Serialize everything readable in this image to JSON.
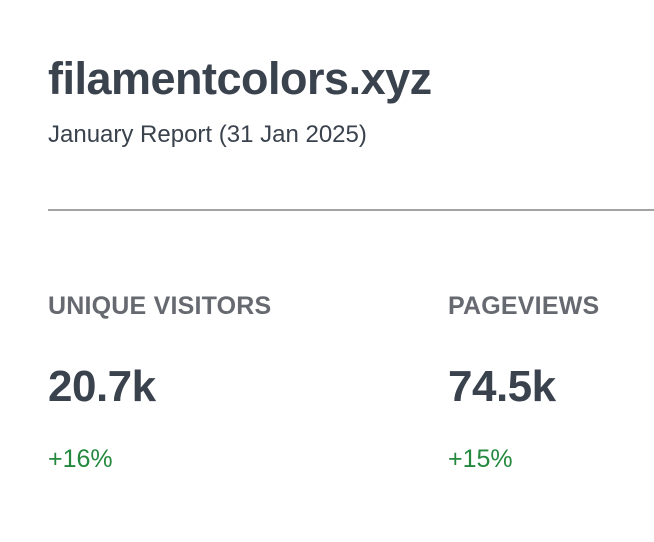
{
  "header": {
    "site_name": "filamentcolors.xyz",
    "report_title": "January Report (31 Jan 2025)"
  },
  "stats": [
    {
      "label": "UNIQUE VISITORS",
      "value": "20.7k",
      "change": "+16%"
    },
    {
      "label": "PAGEVIEWS",
      "value": "74.5k",
      "change": "+15%"
    }
  ],
  "colors": {
    "text": "#3a424d",
    "label": "#666a70",
    "positive_change": "#24893f",
    "divider": "#a3a3a3"
  }
}
